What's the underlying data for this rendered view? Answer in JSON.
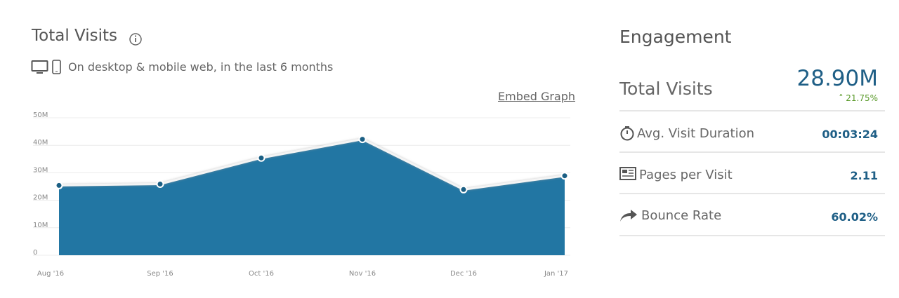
{
  "header": {
    "title": "Total Visits",
    "subtitle": "On desktop & mobile web, in the last 6 months",
    "embed_link": "Embed Graph"
  },
  "chart_data": {
    "type": "area",
    "categories": [
      "Aug '16",
      "Sep '16",
      "Oct '16",
      "Nov '16",
      "Dec '16",
      "Jan '17"
    ],
    "values": [
      25400000,
      25900000,
      35400000,
      42200000,
      23900000,
      28900000
    ],
    "color": "#2276a3",
    "ylim": [
      0,
      50000000
    ],
    "yticks": [
      0,
      {
        "value": 10000000,
        "label": "10M"
      },
      {
        "value": 20000000,
        "label": "20M"
      },
      {
        "value": 30000000,
        "label": "30M"
      },
      {
        "value": 40000000,
        "label": "40M"
      },
      {
        "value": 50000000,
        "label": "50M"
      }
    ],
    "grid": true
  },
  "engagement": {
    "title": "Engagement",
    "total": {
      "label": "Total Visits",
      "value": "28.90M",
      "change": "21.75%"
    },
    "rows": [
      {
        "label": "Avg. Visit Duration",
        "value": "00:03:24"
      },
      {
        "label": "Pages per Visit",
        "value": "2.11"
      },
      {
        "label": "Bounce Rate",
        "value": "60.02%"
      }
    ]
  }
}
